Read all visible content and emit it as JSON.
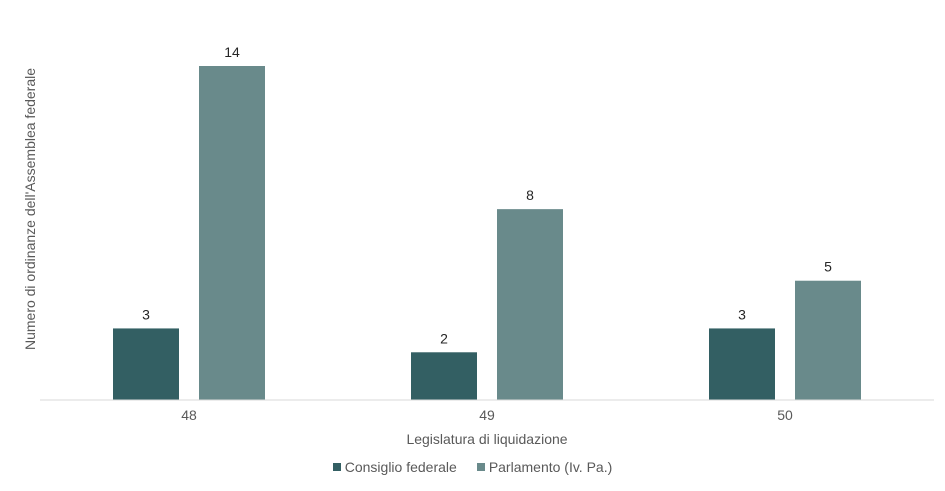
{
  "chart_data": {
    "type": "bar",
    "categories": [
      "48",
      "49",
      "50"
    ],
    "series": [
      {
        "name": "Consiglio federale",
        "values": [
          3,
          2,
          3
        ],
        "color": "#335f63"
      },
      {
        "name": "Parlamento (Iv. Pa.)",
        "values": [
          14,
          8,
          5
        ],
        "color": "#698a8b"
      }
    ],
    "xlabel": "Legislatura di liquidazione",
    "ylabel": "Numero di ordinanze dell'Assemblea federale",
    "ylim": [
      0,
      14
    ],
    "grid": false,
    "legend_position": "bottom"
  }
}
